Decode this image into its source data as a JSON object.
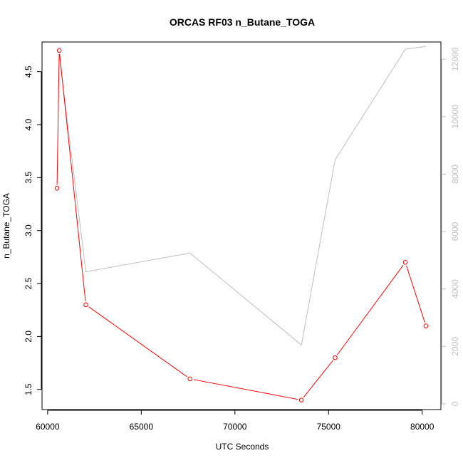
{
  "chart_data": {
    "type": "line",
    "title": "ORCAS RF03 n_Butane_TOGA",
    "xlabel": "UTC Seconds",
    "ylabel": "n_Butane_TOGA",
    "xlim": [
      59700,
      81000
    ],
    "ylim": [
      1.31,
      4.78
    ],
    "y2lim": [
      -200,
      12600
    ],
    "xticks": [
      "60000",
      "65000",
      "70000",
      "75000",
      "80000"
    ],
    "yticks": [
      "1.5",
      "2.0",
      "2.5",
      "3.0",
      "3.5",
      "4.0",
      "4.5"
    ],
    "y2ticks": [
      "0",
      "2000",
      "4000",
      "6000",
      "8000",
      "10000",
      "12000"
    ],
    "grid": false,
    "legend": "none",
    "colors": {
      "primary": "#ff0000",
      "secondary": "#bebebe"
    },
    "series": [
      {
        "axis": "left",
        "x": [
          60500,
          60620,
          62040,
          67600,
          73550,
          75350,
          79100,
          80200
        ],
        "y": [
          3.4,
          4.7,
          2.3,
          1.6,
          1.4,
          1.8,
          2.7,
          2.1
        ]
      },
      {
        "axis": "right",
        "x": [
          60620,
          62040,
          67600,
          73550,
          75350,
          79100,
          80200
        ],
        "y": [
          12150,
          4600,
          5250,
          2050,
          8500,
          12350,
          12450
        ]
      }
    ]
  }
}
